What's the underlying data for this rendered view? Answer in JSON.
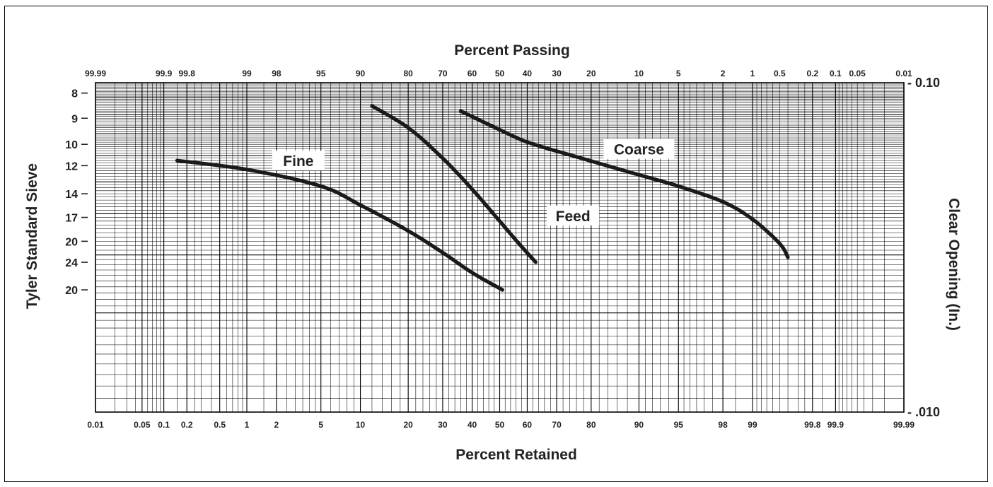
{
  "chart_data": {
    "type": "line",
    "title": "",
    "top_axis_label": "Percent Passing",
    "bottom_axis_label": "Percent Retained",
    "left_axis_label": "Tyler Standard Sieve",
    "right_axis_label": "Clear Opening (In.)",
    "scale": "probability (normal) on x, logarithmic on y",
    "grid": true,
    "top_ticks": [
      "99.99",
      "99.9",
      "99.8",
      "99",
      "98",
      "95",
      "90",
      "80",
      "70",
      "60",
      "50",
      "40",
      "30",
      "20",
      "10",
      "5",
      "2",
      "1",
      "0.5",
      "0.2",
      "0.1",
      "0.05",
      "0.01"
    ],
    "bottom_ticks": [
      "0.01",
      "0.05",
      "0.1",
      "0.2",
      "0.5",
      "1",
      "2",
      "5",
      "10",
      "20",
      "30",
      "40",
      "50",
      "60",
      "70",
      "80",
      "90",
      "95",
      "98",
      "99",
      "99.8",
      "99.9",
      "99.99"
    ],
    "left_ticks": [
      {
        "label": "8",
        "opening_in": 0.093
      },
      {
        "label": "9",
        "opening_in": 0.078
      },
      {
        "label": "10",
        "opening_in": 0.065
      },
      {
        "label": "12",
        "opening_in": 0.056
      },
      {
        "label": "14",
        "opening_in": 0.046
      },
      {
        "label": "17",
        "opening_in": 0.039
      },
      {
        "label": "20",
        "opening_in": 0.033
      },
      {
        "label": "24",
        "opening_in": 0.0285
      },
      {
        "label": "20",
        "opening_in": 0.0235
      }
    ],
    "right_ticks": [
      {
        "label": "- 0.10",
        "opening_in": 0.1
      },
      {
        "label": "- .010",
        "opening_in": 0.01
      }
    ],
    "ylim": [
      0.01,
      0.1
    ],
    "series": [
      {
        "name": "Fine",
        "label_at": {
          "retained": 3.2,
          "opening_in": 0.058
        },
        "points": [
          {
            "retained": 0.15,
            "opening_in": 0.058
          },
          {
            "retained": 1.0,
            "opening_in": 0.0545
          },
          {
            "retained": 5.0,
            "opening_in": 0.0485
          },
          {
            "retained": 10.0,
            "opening_in": 0.0425
          },
          {
            "retained": 20.0,
            "opening_in": 0.0355
          },
          {
            "retained": 30.0,
            "opening_in": 0.0305
          },
          {
            "retained": 40.0,
            "opening_in": 0.0265
          },
          {
            "retained": 51.0,
            "opening_in": 0.0235
          }
        ]
      },
      {
        "name": "Feed",
        "label_at": {
          "retained": 75,
          "opening_in": 0.0395
        },
        "points": [
          {
            "retained": 12.0,
            "opening_in": 0.085
          },
          {
            "retained": 20.0,
            "opening_in": 0.073
          },
          {
            "retained": 30.0,
            "opening_in": 0.059
          },
          {
            "retained": 40.0,
            "opening_in": 0.0475
          },
          {
            "retained": 50.0,
            "opening_in": 0.038
          },
          {
            "retained": 57.0,
            "opening_in": 0.0325
          },
          {
            "retained": 63.0,
            "opening_in": 0.0285
          }
        ]
      },
      {
        "name": "Coarse",
        "label_at": {
          "retained": 90,
          "opening_in": 0.063
        },
        "points": [
          {
            "retained": 36.0,
            "opening_in": 0.082
          },
          {
            "retained": 50.0,
            "opening_in": 0.072
          },
          {
            "retained": 60.0,
            "opening_in": 0.066
          },
          {
            "retained": 75.0,
            "opening_in": 0.06
          },
          {
            "retained": 90.0,
            "opening_in": 0.0525
          },
          {
            "retained": 95.0,
            "opening_in": 0.0485
          },
          {
            "retained": 98.0,
            "opening_in": 0.0435
          },
          {
            "retained": 99.0,
            "opening_in": 0.0385
          },
          {
            "retained": 99.5,
            "opening_in": 0.0325
          },
          {
            "retained": 99.6,
            "opening_in": 0.0295
          }
        ]
      }
    ]
  }
}
